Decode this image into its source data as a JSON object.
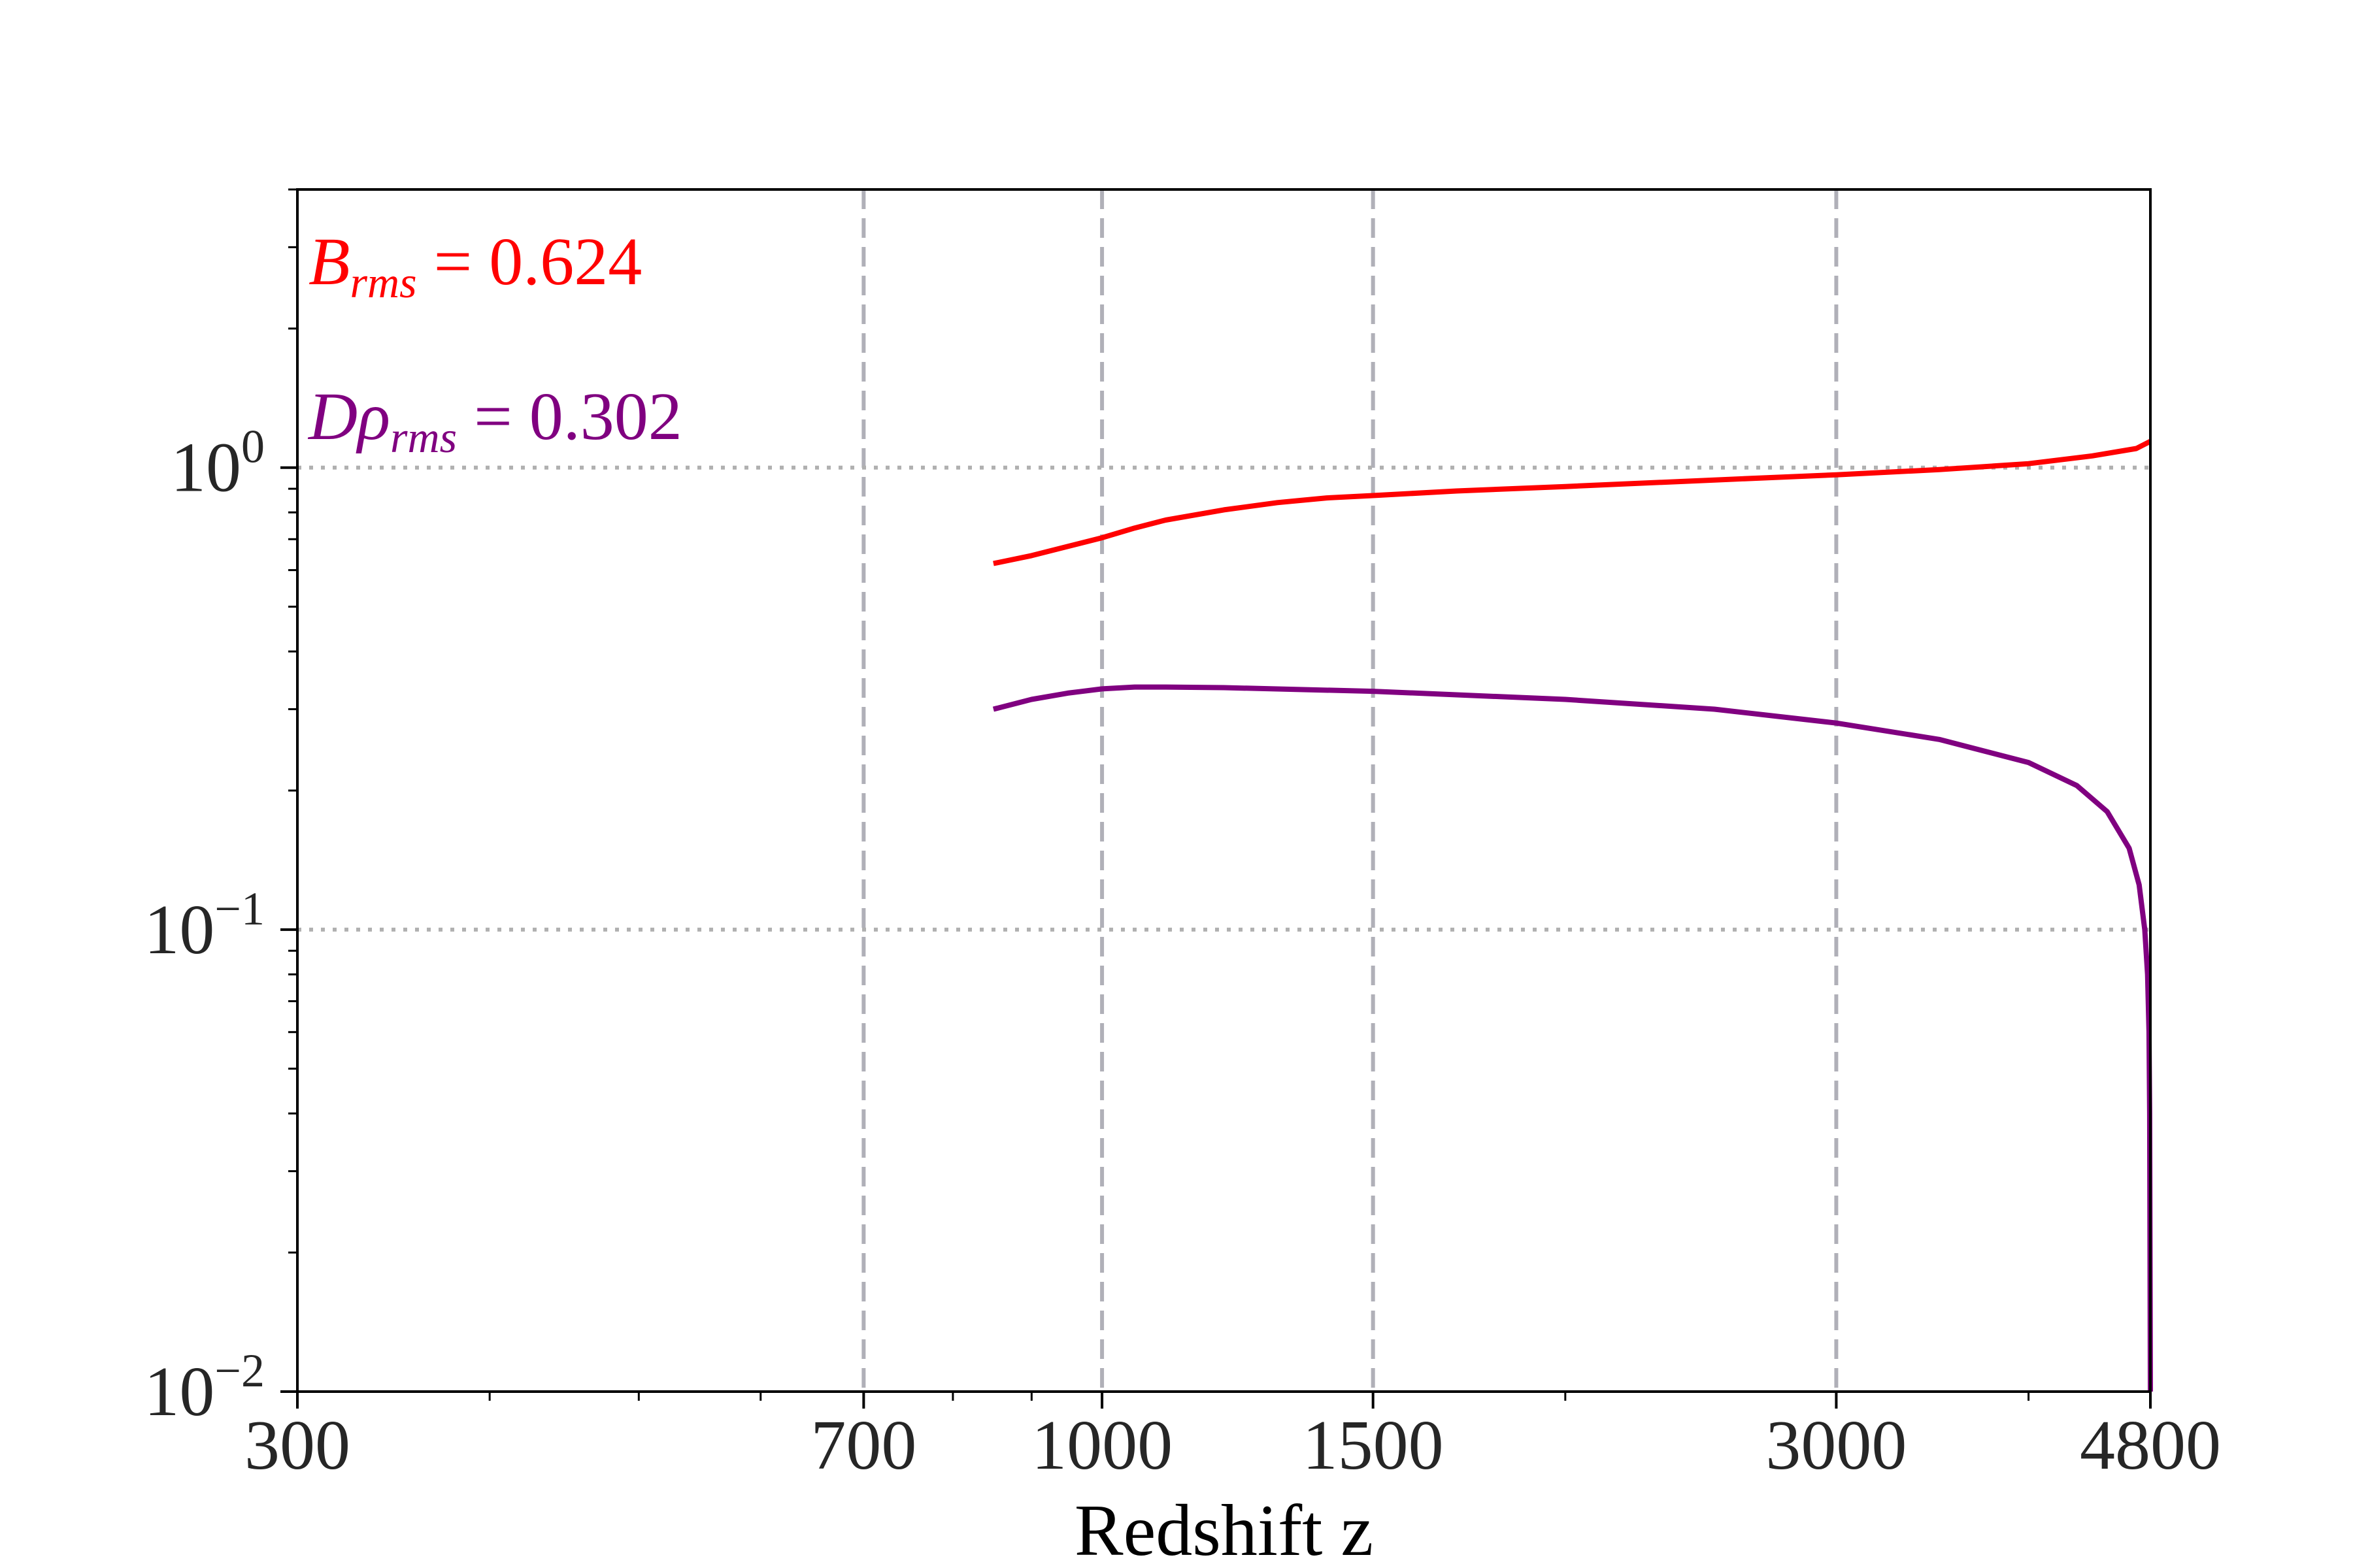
{
  "chart_data": {
    "type": "line",
    "title": "",
    "xlabel": "Redshift z",
    "ylabel": "",
    "x_scale": "log",
    "y_scale": "log",
    "xlim": [
      300,
      4800
    ],
    "ylim": [
      0.01,
      4
    ],
    "x_ticks": [
      {
        "value": 300,
        "label": "300"
      },
      {
        "value": 700,
        "label": "700"
      },
      {
        "value": 1000,
        "label": "1000"
      },
      {
        "value": 1500,
        "label": "1500"
      },
      {
        "value": 3000,
        "label": "3000"
      },
      {
        "value": 4800,
        "label": "4800"
      }
    ],
    "y_ticks": [
      {
        "value": 1,
        "base": "10",
        "exp": "0"
      },
      {
        "value": 0.1,
        "base": "10",
        "exp": "−1"
      },
      {
        "value": 0.01,
        "base": "10",
        "exp": "−2"
      }
    ],
    "grid": {
      "vertical_dashed_at": [
        700,
        1000,
        1500,
        3000
      ],
      "horizontal_dotted_at": [
        1,
        0.1
      ]
    },
    "series": [
      {
        "name": "B_rms",
        "color": "#ff0000",
        "x": [
          850,
          900,
          950,
          1000,
          1050,
          1100,
          1200,
          1300,
          1400,
          1500,
          1700,
          2000,
          2500,
          3000,
          3500,
          4000,
          4400,
          4700,
          4800
        ],
        "y": [
          0.62,
          0.645,
          0.675,
          0.705,
          0.74,
          0.77,
          0.81,
          0.84,
          0.86,
          0.87,
          0.89,
          0.91,
          0.94,
          0.965,
          0.99,
          1.02,
          1.06,
          1.1,
          1.14
        ]
      },
      {
        "name": "Dρ_rms",
        "color": "#800080",
        "x": [
          850,
          900,
          950,
          1000,
          1050,
          1100,
          1200,
          1500,
          2000,
          2500,
          3000,
          3500,
          4000,
          4300,
          4500,
          4650,
          4720,
          4760,
          4780,
          4790,
          4795,
          4800
        ],
        "y": [
          0.3,
          0.315,
          0.325,
          0.332,
          0.335,
          0.335,
          0.334,
          0.328,
          0.315,
          0.3,
          0.28,
          0.258,
          0.23,
          0.205,
          0.18,
          0.15,
          0.125,
          0.1,
          0.08,
          0.06,
          0.04,
          0.01
        ]
      }
    ],
    "annotations": [
      {
        "main": "B",
        "sub": "rms",
        "rest": " = 0.624",
        "color": "#ff0000"
      },
      {
        "main": "Dρ",
        "sub": "rms",
        "rest": " = 0.302",
        "color": "#800080"
      }
    ]
  }
}
